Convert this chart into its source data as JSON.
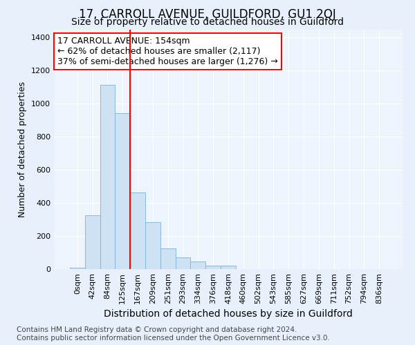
{
  "title": "17, CARROLL AVENUE, GUILDFORD, GU1 2QJ",
  "subtitle": "Size of property relative to detached houses in Guildford",
  "xlabel": "Distribution of detached houses by size in Guildford",
  "ylabel": "Number of detached properties",
  "categories": [
    "0sqm",
    "42sqm",
    "84sqm",
    "125sqm",
    "167sqm",
    "209sqm",
    "251sqm",
    "293sqm",
    "334sqm",
    "376sqm",
    "418sqm",
    "460sqm",
    "502sqm",
    "543sqm",
    "585sqm",
    "627sqm",
    "669sqm",
    "711sqm",
    "752sqm",
    "794sqm",
    "836sqm"
  ],
  "bar_values": [
    8,
    325,
    1115,
    945,
    465,
    285,
    125,
    70,
    45,
    20,
    20,
    0,
    0,
    0,
    0,
    0,
    0,
    0,
    0,
    0,
    0
  ],
  "bar_color": "#cfe2f3",
  "bar_edge_color": "#7ab3d9",
  "vline_x": 3.5,
  "vline_color": "red",
  "annotation_text": "17 CARROLL AVENUE: 154sqm\n← 62% of detached houses are smaller (2,117)\n37% of semi-detached houses are larger (1,276) →",
  "annotation_box_color": "white",
  "annotation_box_edge_color": "red",
  "ylim": [
    0,
    1450
  ],
  "yticks": [
    0,
    200,
    400,
    600,
    800,
    1000,
    1200,
    1400
  ],
  "footer_text": "Contains HM Land Registry data © Crown copyright and database right 2024.\nContains public sector information licensed under the Open Government Licence v3.0.",
  "bg_color": "#e8f1fb",
  "plot_bg_color": "#eef4fc",
  "grid_color": "#ffffff",
  "title_fontsize": 12,
  "subtitle_fontsize": 10,
  "xlabel_fontsize": 10,
  "ylabel_fontsize": 9,
  "tick_fontsize": 8,
  "annotation_fontsize": 9,
  "footer_fontsize": 7.5
}
